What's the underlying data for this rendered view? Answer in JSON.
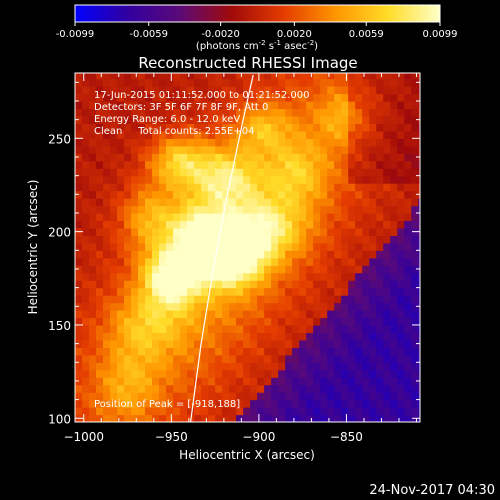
{
  "chart_data": {
    "type": "heatmap",
    "title": "Reconstructed RHESSI Image",
    "colorbar": {
      "ticks": [
        "-0.0099",
        "-0.0059",
        "-0.0020",
        "0.0020",
        "0.0059",
        "0.0099"
      ],
      "range": [
        -0.0099,
        0.0099
      ],
      "units_main": "(photons cm",
      "units_exp1": "-2",
      "units_mid": " s",
      "units_exp2": "-1",
      "units_end": " asec",
      "units_exp3": "-2",
      "units_close": ")"
    },
    "info_lines": [
      "17-Jun-2015 01:11:52.000 to 01:21:52.000",
      "Detectors: 3F 5F 6F 7F 8F 9F, Att 0",
      "Energy Range: 6.0 - 12.0 keV",
      "Clean     Total counts: 2.55E+04"
    ],
    "peak_label": "Position of Peak = [-918,188]",
    "xlabel": "Heliocentric X (arcsec)",
    "ylabel": "Heliocentric Y (arcsec)",
    "xlim": [
      -1005,
      -808
    ],
    "ylim": [
      98,
      285
    ],
    "xticks": [
      -1000,
      -950,
      -900,
      -850
    ],
    "yticks": [
      100,
      150,
      200,
      250
    ],
    "xtick_labels": [
      "−1000",
      "−950",
      "−900",
      "−850"
    ],
    "ytick_labels": [
      "100",
      "150",
      "200",
      "250"
    ],
    "peak": [
      -918,
      188
    ],
    "limb_points": [
      [
        -939,
        98
      ],
      [
        -933,
        140
      ],
      [
        -926,
        180
      ],
      [
        -918,
        220
      ],
      [
        -909,
        260
      ],
      [
        -903,
        285
      ]
    ],
    "colormap_stops": [
      "#0000ff",
      "#3000a0",
      "#5a0a78",
      "#a00a0a",
      "#e43c00",
      "#ff9600",
      "#ffdc28",
      "#ffffc8"
    ],
    "footer": "24-Nov-2017 04:30"
  }
}
